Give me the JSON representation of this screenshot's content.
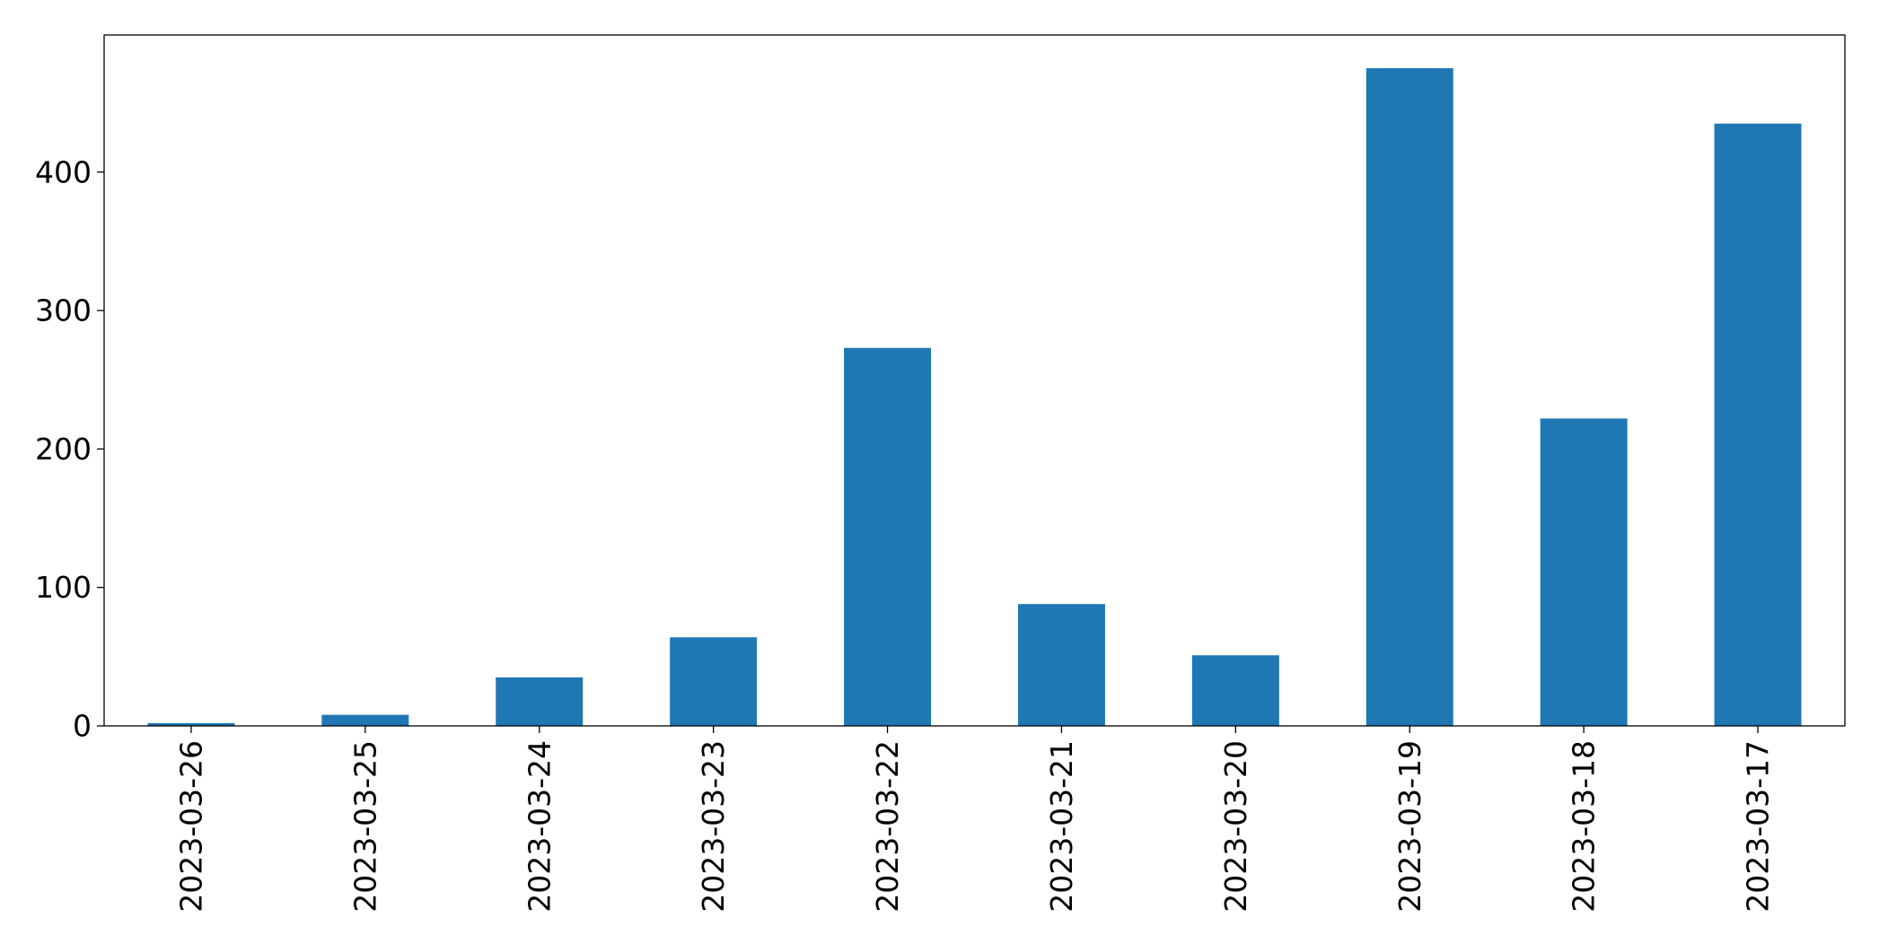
{
  "chart_data": {
    "type": "bar",
    "title": "",
    "xlabel": "",
    "ylabel": "",
    "categories": [
      "2023-03-26",
      "2023-03-25",
      "2023-03-24",
      "2023-03-23",
      "2023-03-22",
      "2023-03-21",
      "2023-03-20",
      "2023-03-19",
      "2023-03-18",
      "2023-03-17"
    ],
    "values": [
      2,
      8,
      35,
      64,
      273,
      88,
      51,
      475,
      222,
      435
    ],
    "ylim": [
      0,
      499
    ],
    "yticks": [
      0,
      100,
      200,
      300,
      400
    ],
    "ytick_labels": [
      "0",
      "100",
      "200",
      "300",
      "400"
    ],
    "grid": false,
    "legend": "none",
    "bar_color": "#1f77b4"
  }
}
